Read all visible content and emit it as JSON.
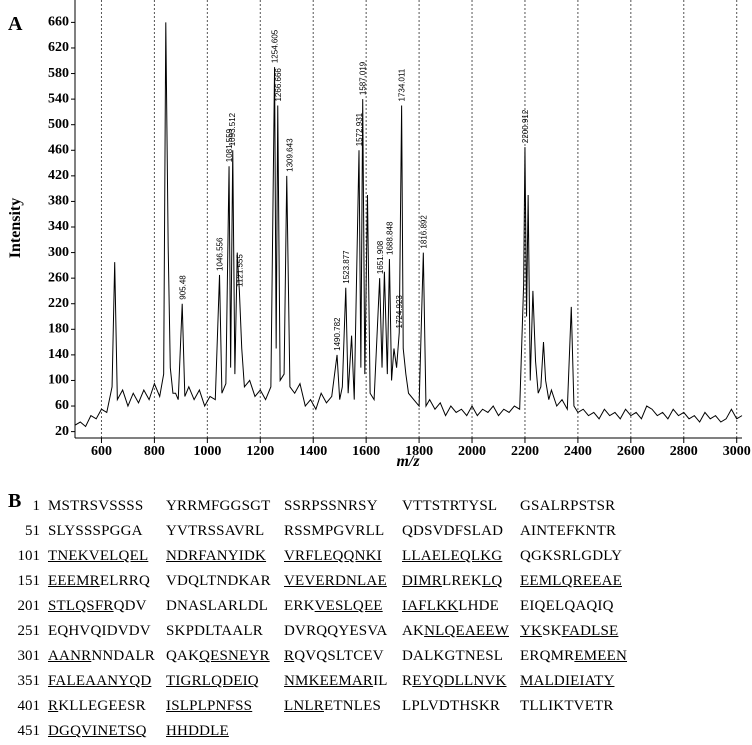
{
  "chart_data": {
    "type": "line",
    "panel_label": "A",
    "xlabel": "m/z",
    "ylabel": "Intensity",
    "xlim": [
      500,
      3020
    ],
    "xticks": [
      600,
      800,
      1000,
      1200,
      1400,
      1600,
      1800,
      2000,
      2200,
      2400,
      2600,
      2800,
      3000
    ],
    "ylim": [
      10,
      670
    ],
    "yticks": [
      20,
      60,
      100,
      140,
      180,
      220,
      260,
      300,
      340,
      380,
      420,
      460,
      500,
      540,
      580,
      620,
      660
    ],
    "grid": true,
    "color": "#000000",
    "x": [
      500,
      520,
      540,
      560,
      580,
      600,
      620,
      640,
      650,
      660,
      680,
      700,
      720,
      740,
      760,
      780,
      800,
      820,
      835,
      843,
      852,
      860,
      870,
      880,
      890,
      905,
      915,
      930,
      950,
      970,
      990,
      1010,
      1030,
      1046,
      1055,
      1070,
      1082,
      1088,
      1096,
      1104,
      1113,
      1121,
      1130,
      1140,
      1160,
      1180,
      1200,
      1220,
      1240,
      1254,
      1260,
      1266,
      1275,
      1290,
      1300,
      1312,
      1330,
      1350,
      1370,
      1390,
      1410,
      1430,
      1450,
      1470,
      1490,
      1500,
      1510,
      1523,
      1532,
      1545,
      1555,
      1573,
      1580,
      1587,
      1595,
      1605,
      1615,
      1630,
      1651,
      1660,
      1669,
      1680,
      1688,
      1696,
      1705,
      1715,
      1725,
      1734,
      1740,
      1750,
      1760,
      1780,
      1800,
      1816,
      1826,
      1840,
      1860,
      1880,
      1900,
      1920,
      1940,
      1960,
      1980,
      2000,
      2020,
      2040,
      2060,
      2080,
      2100,
      2120,
      2140,
      2160,
      2180,
      2195,
      2200,
      2206,
      2212,
      2220,
      2230,
      2240,
      2250,
      2260,
      2270,
      2278,
      2290,
      2300,
      2320,
      2340,
      2360,
      2375,
      2385,
      2400,
      2420,
      2440,
      2460,
      2480,
      2500,
      2520,
      2540,
      2560,
      2580,
      2600,
      2620,
      2640,
      2660,
      2680,
      2700,
      2720,
      2740,
      2760,
      2780,
      2800,
      2820,
      2840,
      2860,
      2880,
      2900,
      2920,
      2940,
      2960,
      2980,
      3000,
      3020
    ],
    "values": [
      30,
      35,
      28,
      45,
      40,
      55,
      50,
      90,
      285,
      70,
      85,
      60,
      80,
      65,
      85,
      70,
      95,
      75,
      110,
      660,
      310,
      120,
      80,
      80,
      70,
      220,
      75,
      90,
      70,
      85,
      60,
      75,
      70,
      265,
      80,
      95,
      435,
      120,
      460,
      110,
      300,
      240,
      150,
      90,
      100,
      75,
      85,
      70,
      90,
      590,
      150,
      530,
      100,
      110,
      420,
      90,
      80,
      95,
      60,
      70,
      55,
      80,
      65,
      75,
      140,
      70,
      90,
      245,
      80,
      170,
      70,
      460,
      120,
      540,
      110,
      390,
      80,
      70,
      260,
      120,
      270,
      110,
      290,
      100,
      150,
      120,
      175,
      530,
      150,
      110,
      80,
      70,
      60,
      300,
      60,
      70,
      55,
      65,
      45,
      60,
      50,
      55,
      45,
      60,
      45,
      55,
      50,
      60,
      45,
      55,
      50,
      60,
      55,
      250,
      465,
      200,
      390,
      100,
      240,
      130,
      80,
      90,
      160,
      100,
      70,
      85,
      60,
      70,
      55,
      215,
      60,
      50,
      55,
      45,
      50,
      40,
      55,
      45,
      50,
      40,
      55,
      45,
      50,
      40,
      60,
      55,
      45,
      50,
      40,
      55,
      45,
      50,
      40,
      45,
      35,
      50,
      40,
      45,
      35,
      40,
      55,
      40,
      45
    ],
    "annotations": [
      {
        "x": 905.48,
        "y": 220
      },
      {
        "x": 1046.556,
        "y": 265
      },
      {
        "x": 1081.559,
        "y": 435
      },
      {
        "x": 1093.512,
        "y": 460
      },
      {
        "x": 1121.555,
        "y": 240
      },
      {
        "x": 1254.605,
        "y": 590
      },
      {
        "x": 1266.666,
        "y": 530
      },
      {
        "x": 1309.643,
        "y": 420
      },
      {
        "x": 1490.782,
        "y": 140
      },
      {
        "x": 1523.877,
        "y": 245
      },
      {
        "x": 1572.931,
        "y": 460
      },
      {
        "x": 1587.019,
        "y": 540
      },
      {
        "x": 1651.908,
        "y": 260
      },
      {
        "x": 1688.848,
        "y": 290
      },
      {
        "x": 1724.923,
        "y": 175
      },
      {
        "x": 1734.011,
        "y": 530
      },
      {
        "x": 1816.892,
        "y": 300
      },
      {
        "x": 2200.912,
        "y": 465
      }
    ]
  },
  "sequence": {
    "panel_label": "B",
    "rows": [
      {
        "start": 1,
        "blocks": [
          [
            {
              "text": "MSTRSVSSSS"
            }
          ],
          [
            {
              "text": "YRRMFGGSGT"
            }
          ],
          [
            {
              "text": "SSRPSSNRSY"
            }
          ],
          [
            {
              "text": "VTTSTRTYSL"
            }
          ],
          [
            {
              "text": "GSALRPSTSR"
            }
          ]
        ]
      },
      {
        "start": 51,
        "blocks": [
          [
            {
              "text": "SLYSSSPGGA"
            }
          ],
          [
            {
              "text": "YVTRSSAVRL"
            }
          ],
          [
            {
              "text": "RSSMPGVRLL"
            }
          ],
          [
            {
              "text": "QDSVDFSLAD"
            }
          ],
          [
            {
              "text": "AINTEFKNTR"
            }
          ]
        ]
      },
      {
        "start": 101,
        "blocks": [
          [
            {
              "text": "TNEKVELQEL",
              "underline": true
            }
          ],
          [
            {
              "text": "NDRFANYIDK",
              "underline": true
            }
          ],
          [
            {
              "text": "VRFLEQQNKI",
              "underline": true
            }
          ],
          [
            {
              "text": "LLAELEQLKG",
              "underline": true
            }
          ],
          [
            {
              "text": "QGKSRLGDLY"
            }
          ]
        ]
      },
      {
        "start": 151,
        "blocks": [
          [
            {
              "text": "EEEMR",
              "underline": true
            },
            {
              "text": "ELRRQ"
            }
          ],
          [
            {
              "text": "VDQLTNDKAR"
            }
          ],
          [
            {
              "text": "VEVERDNLAE",
              "underline": true
            }
          ],
          [
            {
              "text": "DIMR",
              "underline": true
            },
            {
              "text": "LREK"
            },
            {
              "text": "LQ",
              "underline": true
            }
          ],
          [
            {
              "text": "EEMLQREEAE",
              "underline": true
            }
          ]
        ]
      },
      {
        "start": 201,
        "blocks": [
          [
            {
              "text": "STLQSFR",
              "underline": true
            },
            {
              "text": "QDV"
            }
          ],
          [
            {
              "text": "DNASLARLDL"
            }
          ],
          [
            {
              "text": "ERK"
            },
            {
              "text": "VESLQEE",
              "underline": true
            }
          ],
          [
            {
              "text": "IAFLKK",
              "underline": true
            },
            {
              "text": "LHDE"
            }
          ],
          [
            {
              "text": "EIQELQAQIQ"
            }
          ]
        ]
      },
      {
        "start": 251,
        "blocks": [
          [
            {
              "text": "EQHVQIDVDV"
            }
          ],
          [
            {
              "text": "SKPDLTAALR"
            }
          ],
          [
            {
              "text": "DVRQQYESVA"
            }
          ],
          [
            {
              "text": "AK"
            },
            {
              "text": "NLQEAEEW",
              "underline": true
            }
          ],
          [
            {
              "text": "YK",
              "underline": true
            },
            {
              "text": "SK"
            },
            {
              "text": "FADLSE",
              "underline": true
            }
          ]
        ]
      },
      {
        "start": 301,
        "blocks": [
          [
            {
              "text": "AANR",
              "underline": true
            },
            {
              "text": "NNDALR"
            }
          ],
          [
            {
              "text": "QAK"
            },
            {
              "text": "QESNEYR",
              "underline": true
            }
          ],
          [
            {
              "text": "R",
              "underline": true
            },
            {
              "text": "QVQSLTCEV"
            }
          ],
          [
            {
              "text": "DALKGTNESL"
            }
          ],
          [
            {
              "text": "ERQMR"
            },
            {
              "text": "EMEEN",
              "underline": true
            }
          ]
        ]
      },
      {
        "start": 351,
        "blocks": [
          [
            {
              "text": "FALEAANYQD",
              "underline": true
            }
          ],
          [
            {
              "text": "TIGRLQDEIQ",
              "underline": true
            }
          ],
          [
            {
              "text": "NMKEEMAR",
              "underline": true
            },
            {
              "text": "IL"
            }
          ],
          [
            {
              "text": "R"
            },
            {
              "text": "EYQDLLNVK",
              "underline": true
            }
          ],
          [
            {
              "text": "MALDIEIATY",
              "underline": true
            }
          ]
        ]
      },
      {
        "start": 401,
        "blocks": [
          [
            {
              "text": "R",
              "underline": true
            },
            {
              "text": "KLLEGEESR"
            }
          ],
          [
            {
              "text": "ISLPLPNFSS",
              "underline": true
            }
          ],
          [
            {
              "text": "LNLR",
              "underline": true
            },
            {
              "text": "ETNLES"
            }
          ],
          [
            {
              "text": "LPLVDTHSKR"
            }
          ],
          [
            {
              "text": "TLLIKTVETR"
            }
          ]
        ]
      },
      {
        "start": 451,
        "blocks": [
          [
            {
              "text": "DGQVINETSQ",
              "underline": true
            }
          ],
          [
            {
              "text": "HHDDLE",
              "underline": true
            }
          ]
        ]
      }
    ]
  }
}
